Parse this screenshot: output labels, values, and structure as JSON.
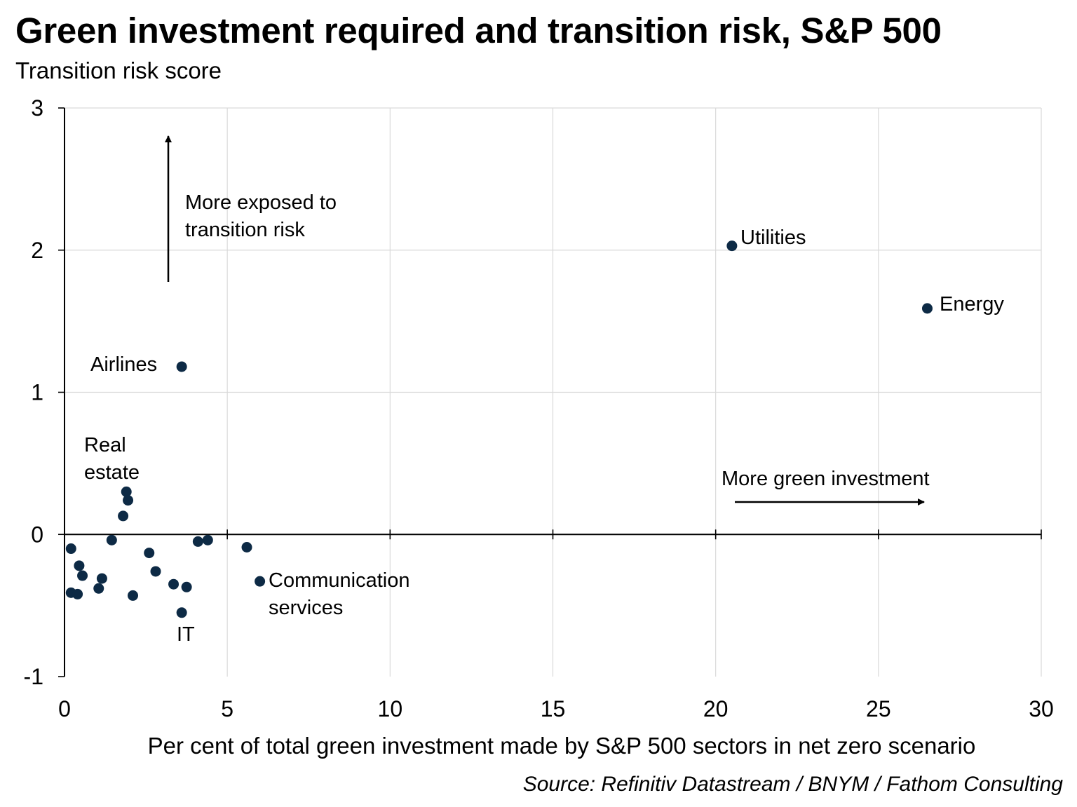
{
  "header": {
    "title": "Green investment required and transition risk, S&P 500",
    "subtitle": "Transition risk score"
  },
  "footer": {
    "source": "Source: Refinitiv Datastream / BNYM / Fathom Consulting"
  },
  "chart_data": {
    "type": "scatter",
    "title": "Green investment required and transition risk, S&P 500",
    "ylabel": "Transition risk score",
    "xlabel": "Per cent of total green investment made by S&P 500 sectors in net zero scenario",
    "xlim": [
      0,
      30
    ],
    "ylim": [
      -1,
      3
    ],
    "xticks": [
      0,
      5,
      10,
      15,
      20,
      25,
      30
    ],
    "yticks": [
      -1,
      0,
      1,
      2,
      3
    ],
    "grid": true,
    "marker_color": "#0d2a45",
    "points": [
      {
        "x": 20.5,
        "y": 2.03,
        "label": "Utilities"
      },
      {
        "x": 26.5,
        "y": 1.59,
        "label": "Energy"
      },
      {
        "x": 3.6,
        "y": 1.18,
        "label": "Airlines"
      },
      {
        "x": 1.9,
        "y": 0.3,
        "label": "Real estate"
      },
      {
        "x": 1.95,
        "y": 0.24
      },
      {
        "x": 1.8,
        "y": 0.13
      },
      {
        "x": 1.45,
        "y": -0.04
      },
      {
        "x": 0.2,
        "y": -0.1
      },
      {
        "x": 0.45,
        "y": -0.22
      },
      {
        "x": 0.55,
        "y": -0.29
      },
      {
        "x": 1.15,
        "y": -0.31
      },
      {
        "x": 1.05,
        "y": -0.38
      },
      {
        "x": 0.2,
        "y": -0.41
      },
      {
        "x": 0.4,
        "y": -0.42
      },
      {
        "x": 2.1,
        "y": -0.43
      },
      {
        "x": 2.6,
        "y": -0.13
      },
      {
        "x": 2.8,
        "y": -0.26
      },
      {
        "x": 3.35,
        "y": -0.35
      },
      {
        "x": 3.75,
        "y": -0.37
      },
      {
        "x": 3.6,
        "y": -0.55,
        "label": "IT"
      },
      {
        "x": 4.1,
        "y": -0.05
      },
      {
        "x": 4.4,
        "y": -0.04
      },
      {
        "x": 5.6,
        "y": -0.09
      },
      {
        "x": 6.0,
        "y": -0.33,
        "label": "Communication services"
      }
    ],
    "annotations": {
      "vertical_arrow": "More exposed to transition risk",
      "horizontal_arrow": "More green investment"
    }
  }
}
